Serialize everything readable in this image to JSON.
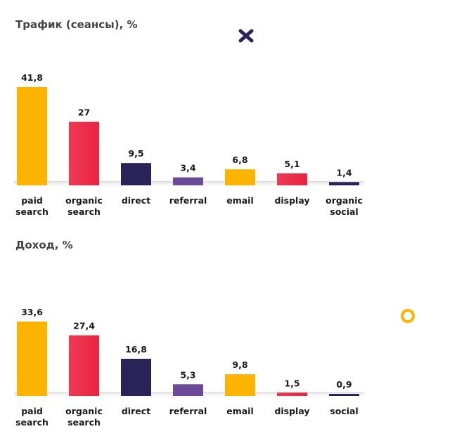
{
  "colors": {
    "yellow": "#FDB400",
    "red": "#E8243F",
    "red_light": "#EE3A55",
    "navy": "#2A2358",
    "purple": "#6B4B97",
    "title": "#444444"
  },
  "decorations": [
    "x-mark-icon",
    "ring-icon"
  ],
  "chart_data": [
    {
      "type": "bar",
      "title": "Трафик (сеансы), %",
      "categories": [
        [
          "paid",
          "search"
        ],
        [
          "organic",
          "search"
        ],
        [
          "direct"
        ],
        [
          "referral"
        ],
        [
          "email"
        ],
        [
          "display"
        ],
        [
          "organic",
          "social"
        ]
      ],
      "values": [
        41.8,
        27,
        9.5,
        3.4,
        6.8,
        5.1,
        1.4
      ],
      "value_labels": [
        "41,8",
        "27",
        "9,5",
        "3,4",
        "6,8",
        "5,1",
        "1,4"
      ],
      "bar_colors": [
        "#FDB400",
        "#E8243F",
        "#2A2358",
        "#6B4B97",
        "#FDB400",
        "#E8243F",
        "#2A2358"
      ],
      "ylim": [
        0,
        41.8
      ],
      "grid": false,
      "legend": "none"
    },
    {
      "type": "bar",
      "title": "Доход, %",
      "categories": [
        [
          "paid",
          "search"
        ],
        [
          "organic",
          "search"
        ],
        [
          "direct"
        ],
        [
          "referral"
        ],
        [
          "email"
        ],
        [
          "display"
        ],
        [
          "social"
        ]
      ],
      "values": [
        33.6,
        27.4,
        16.8,
        5.3,
        9.8,
        1.5,
        0.9
      ],
      "value_labels": [
        "33,6",
        "27,4",
        "16,8",
        "5,3",
        "9,8",
        "1,5",
        "0,9"
      ],
      "bar_colors": [
        "#FDB400",
        "#E8243F",
        "#2A2358",
        "#6B4B97",
        "#FDB400",
        "#E8243F",
        "#2A2358"
      ],
      "ylim": [
        0,
        33.6
      ],
      "grid": false,
      "legend": "none"
    }
  ]
}
